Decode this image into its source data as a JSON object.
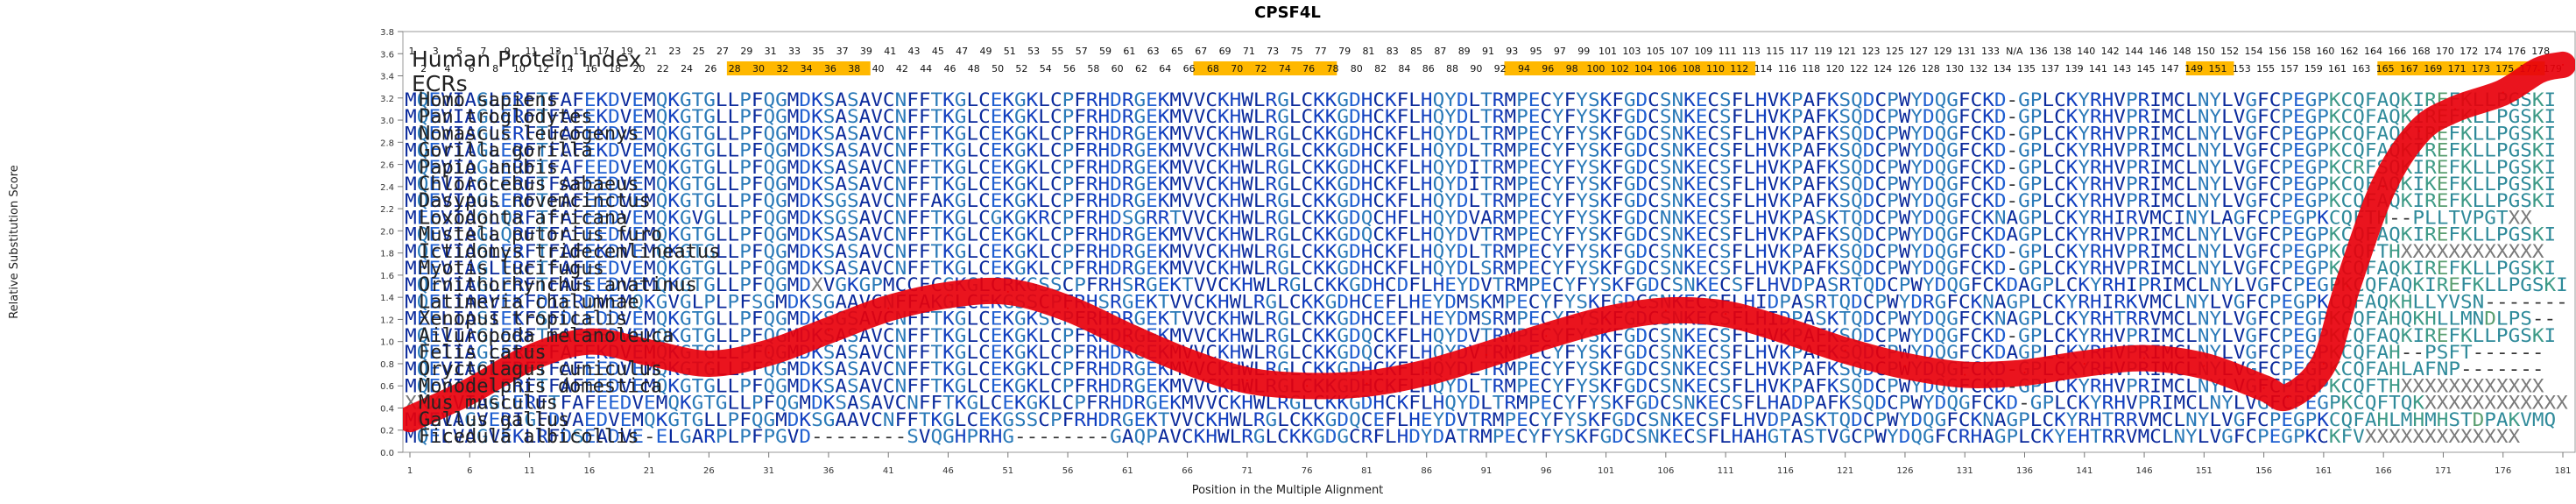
{
  "chart_data": {
    "type": "line",
    "title": "CPSF4L",
    "xlabel": "Position in the Multiple Alignment",
    "ylabel": "Relative Substitution Score",
    "xlim": [
      1,
      181
    ],
    "ylim": [
      0,
      3.8
    ],
    "x_ticks": [
      1,
      6,
      11,
      16,
      21,
      26,
      31,
      36,
      41,
      46,
      51,
      56,
      61,
      66,
      71,
      76,
      81,
      86,
      91,
      96,
      101,
      106,
      111,
      116,
      121,
      126,
      131,
      136,
      141,
      146,
      151,
      156,
      161,
      166,
      171,
      176,
      181
    ],
    "y_ticks": [
      "0.0",
      "0.2",
      "0.4",
      "0.6",
      "0.8",
      "1.0",
      "1.2",
      "1.4",
      "1.6",
      "1.8",
      "2.0",
      "2.2",
      "2.4",
      "2.6",
      "2.8",
      "3.0",
      "3.2",
      "3.4",
      "3.6",
      "3.8"
    ],
    "series": [
      {
        "name": "Relative Substitution Score",
        "color": "#e8000b",
        "points": [
          [
            1,
            0.3
          ],
          [
            6,
            0.55
          ],
          [
            11,
            0.85
          ],
          [
            16,
            1.0
          ],
          [
            21,
            0.9
          ],
          [
            26,
            0.8
          ],
          [
            31,
            0.9
          ],
          [
            36,
            1.1
          ],
          [
            41,
            1.3
          ],
          [
            46,
            1.42
          ],
          [
            51,
            1.45
          ],
          [
            56,
            1.3
          ],
          [
            61,
            1.05
          ],
          [
            66,
            0.82
          ],
          [
            71,
            0.65
          ],
          [
            76,
            0.6
          ],
          [
            81,
            0.62
          ],
          [
            86,
            0.72
          ],
          [
            91,
            0.88
          ],
          [
            96,
            1.05
          ],
          [
            101,
            1.2
          ],
          [
            106,
            1.28
          ],
          [
            111,
            1.25
          ],
          [
            116,
            1.1
          ],
          [
            121,
            0.92
          ],
          [
            126,
            0.78
          ],
          [
            131,
            0.7
          ],
          [
            136,
            0.72
          ],
          [
            141,
            0.8
          ],
          [
            146,
            0.85
          ],
          [
            151,
            0.78
          ],
          [
            156,
            0.58
          ],
          [
            158,
            0.5
          ],
          [
            161,
            0.8
          ],
          [
            163,
            1.5
          ],
          [
            166,
            2.4
          ],
          [
            169,
            2.9
          ],
          [
            172,
            3.1
          ],
          [
            176,
            3.25
          ],
          [
            179,
            3.45
          ],
          [
            181,
            3.5
          ]
        ]
      }
    ]
  },
  "header": {
    "human_protein_index_label": "Human Protein Index",
    "ecrs_label": "ECRs",
    "index_row_1": [
      "1",
      "3",
      "5",
      "7",
      "9",
      "11",
      "13",
      "15",
      "17",
      "19",
      "21",
      "23",
      "25",
      "27",
      "29",
      "31",
      "33",
      "35",
      "37",
      "39",
      "41",
      "43",
      "45",
      "47",
      "49",
      "51",
      "53",
      "55",
      "57",
      "59",
      "61",
      "63",
      "65",
      "67",
      "69",
      "71",
      "73",
      "75",
      "77",
      "79",
      "81",
      "83",
      "85",
      "87",
      "89",
      "91",
      "93",
      "95",
      "97",
      "99",
      "101",
      "103",
      "105",
      "107",
      "109",
      "111",
      "113",
      "115",
      "117",
      "119",
      "121",
      "123",
      "125",
      "127",
      "129",
      "131",
      "133",
      "N/A",
      "136",
      "138",
      "140",
      "142",
      "144",
      "146",
      "148",
      "150",
      "152",
      "154",
      "156",
      "158",
      "160",
      "162",
      "164",
      "166",
      "168",
      "170",
      "172",
      "174",
      "176",
      "178"
    ],
    "index_row_2": [
      "2",
      "4",
      "6",
      "8",
      "10",
      "12",
      "14",
      "16",
      "18",
      "20",
      "22",
      "24",
      "26",
      "28",
      "30",
      "32",
      "34",
      "36",
      "38",
      "40",
      "42",
      "44",
      "46",
      "48",
      "50",
      "52",
      "54",
      "56",
      "58",
      "60",
      "62",
      "64",
      "66",
      "68",
      "70",
      "72",
      "74",
      "76",
      "78",
      "80",
      "82",
      "84",
      "86",
      "88",
      "90",
      "92",
      "94",
      "96",
      "98",
      "100",
      "102",
      "104",
      "106",
      "108",
      "110",
      "112",
      "114",
      "116",
      "118",
      "120",
      "122",
      "124",
      "126",
      "128",
      "130",
      "132",
      "134",
      "135",
      "137",
      "139",
      "141",
      "143",
      "145",
      "147",
      "149",
      "151",
      "153",
      "155",
      "157",
      "159",
      "161",
      "163",
      "165",
      "167",
      "169",
      "171",
      "173",
      "175",
      "177",
      "179"
    ],
    "ecr_ranges": [
      [
        28,
        39
      ],
      [
        67,
        78
      ],
      [
        93,
        113
      ],
      [
        150,
        153
      ],
      [
        166,
        179
      ]
    ],
    "ecr_color": "#ffb800"
  },
  "alignment": {
    "rows": [
      {
        "species": "Homo sapiens",
        "seq": "MQEVIAGLERFTFAFEKDVEMQKGTGLLPFQGMDKSASAVCNFFTKGLCEKGKLCPFRHDRGEKMVVCKHWLRGLCKKGDHCKFLHQYDLTRMPECYFYSKFGDCSNKECSFLHVKPAFKSQDCPWYDQGFCKD-GPLCKYRHVPRIMCLNYLVGFCPEGPKCQFAQKIREFKLLPGSKI"
      },
      {
        "species": "Pan troglodytes",
        "seq": "MQEVIAGLERFTFAFEKDVEMQKGTGLLPFQGMDKSASAVCNFFTKGLCEKGKLCPFRHDRGEKMVVCKHWLRGLCKKGDHCKFLHQYDLTRMPECYFYSKFGDCSNKECSFLHVKPAFKSQDCPWYDQGFCKD-GPLCKYRHVPRIMCLNYLVGFCPEGPKCQFAQKIREFKLLPGSKI"
      },
      {
        "species": "Nomascus leucogenys",
        "seq": "MQEVIAGLERFTFAFEKDVEMQKGTGLLPFQGMDKSASAVCNFFTKGLCEKGKLCPFRHDRGEKMVVCKHWLRGLCKKGDHCKFLHQYDLTRMPECYFYSKFGDCSNKECSFLHVKPAFKSQDCPWYDQGFCKD-GPLCKYRHVPRIMCLNYLVGFCPEGPKCQFAQKIREFKLLPGSKI"
      },
      {
        "species": "Gorilla gorilla",
        "seq": "MQEVIAGLERFTFAFEKDVEMQKGTGLLPFQGMDKSASAVCNFFTKGLCEKGKLCPFRHDRGEKMVVCKHWLRGLCKKGDHCKFLHQYDLTRMPECYFYSKFGDCSNKECSFLHVKPAFKSQDCPWYDQGFCKD-GPLCKYRHVPRIMCLNYLVGFCPEGPKCQFAQKIREFKLLPGSKI"
      },
      {
        "species": "Papio anubis",
        "seq": "MQEVIAGLERFTFAFEEDVEMQKGTGLLPFQGMDKSASAVCNFFTKGLCEKGKLCPFRHDRGEKMVVCKHWLRGLCKKGDHCKFLHQYDITRMPECYFYSKFGDCSNKECSFLHVKPAFKSQDCPWYDQGFCKD-GPLCKYRHVPRIMCLNYLVGFCPEGPKCRFSQKIREFKLLPGSKI"
      },
      {
        "species": "Chlorocebus sabaeus",
        "seq": "MQEVIAGLERFTFAFEEDVEMQKGTGLLPFQGMDKSASAVCNFFTKGLCEKGKLCPFRHDRGEKMVVCKHWLRGLCKKGDHCKFLHQYDITRMPECYFYSKFGDCSNKECSFLHVKPAFKSQDCPWYDQGFCKD-GPLCKYRHVPRIMCLNYLVGFCPEGPKCQFAQKIKEFKLLPGSKI"
      },
      {
        "species": "Dasypus novemcinctus",
        "seq": "MQEVIAGLERFTFAFEEDVEMQKGTGLLPFQGMDKSGSAVCNFFAKGLCEKGKLCPFRHDRGEKMVVCKHWLRGLCKKGDHCKFLHQYDLTRMPECYFYSKFGDCSNKECSFLHVKPAFKSQDCPWYDQGFCKD-GPLCKYRHVPRIMCLNYLVGFCPEGPKCQFAQKIREFKLLPGSKI"
      },
      {
        "species": "Loxodonta africana",
        "seq": "MEEVIAGLQRFTFAFEEDVEMQKGVGLLPFQGMDKSGSAVCNFFTKGLCGKGKRCPFRHDSGRRTVVCKHWLRGLCKKGDQCHFLHQYDVARMPECYFYSKFGDCNNKECSFLHVKPASKTQDCPWYDQGFCKNAGPLCKYRHIRVMCINYLAGFCPEGPKCQFTH--PLLTVPGTXX"
      },
      {
        "species": "Mustela putorius furo",
        "seq": "MQEVIAGLQRFTFAFEEDVEMQKGTGLLPFQGMDKSASAVCNFFTKGLCEKGKLCPFRHDRGEKMVVCKHWLRGLCKKGDQCKFLHQYDVTRMPECYFYSKFGDCSNKECSFLHVKPAFKSQDCPWYDQGFCKDAGPLCKYRHVPRIMCLNYLVGFCPEGPKCQFAQKIREFKLLPGSKI"
      },
      {
        "species": "Ictidomys tridecemlineatus",
        "seq": "MQEVIAGLERFTFAFEKDVEMQKGTGLLPFQGMDKSASAVCNFFTKGLCEKGKLCPFRHDRGEKMVVCKHWLRGLCKKGDHCKFLHQYDLTRMPECYFYSKFGDCSNKECSFLHVKPAFKSQDCPWYDQGFCKD-GPLCKYRHVPRIMCLNYLVGFCPEGPKCQFTHXXXXXXXXXXXX"
      },
      {
        "species": "Myotis lucifugus",
        "seq": "MEEVIAGLERFTFAFEEDVEMQKGTGLLPFQGMDKSASAVCNFFTKGLCEKGKLCPFRHDRGEKMVVCKHWLRGLCKKGDHCKFLHQYDLSRMPECYFYSKFGDCSNKECSFLHVKPAFKSQDCPWYDQGFCKD-GPLCKYRHVPRIMCLNYLVGFCPEGPKCQFAQKIREFKLLPGSKI"
      },
      {
        "species": "Ornithorhynchus anatinus",
        "seq": "MQEVIAGLERFTFAFEEDVEMQKGTGLLPFQGMDXVGKGPMCCFCGKGLCRKGSSCPFRHSRGEKTVVCKHWLRGLCKKGDHCDFLHEYDVTRMPECYFYSKFGDCSNKECSFLHVDPASRTQDCPWYDQGFCKDAGPLCKYRHIPRIMCLNYLVGFCPEGPKCQFAQKIREFKLLPGSKI"
      },
      {
        "species": "Latimeria chalumnae",
        "seq": "MQELIARVEKFDIERDVEMQKGVGLPLPFSGMDKSGAAVCNFFAKGLCEKGSSCPFRHSRGEKTVVCKHWLRGLCKKGDHCEFLHEYDMSKMPECYFYSKFGDCSNKECSFLHIDPASRTQDCPWYDRGFCKNAGPLCKYRHIRKVMCLNYLVGFCPEGPKCQFAQKHLLYVSN-------"
      },
      {
        "species": "Xenopus tropicalis",
        "seq": "MEELIASIEKFSFDLEDDVEMQKGTGLLPFQGMDKSGSAVCNFFTKGLCEKGKSCPFRHDRGEKTVVCKHWLRGLCKKGDHCEFLHEYDMSRMPECYFYSKFGDCSNKECSFLHIDPASKTQDCPWYDQGFCKNAGPLCKYRHTRRVMCLNYLVGFCPEGPKCQFAHQKHLLMNDLPS--"
      },
      {
        "species": "Ailuropoda melanoleuca",
        "seq": "MQEVIAGLERFTFAFEEDVEMQKGTGLLPFQGMDKSASAVCNFFTKGLCEKGKLCPFRHDRGEKMVVCKHWLRGLCKKGDQCKFLHQYDVTRMPECYFYSKFGDCSNKECSFLHVKPAFKSQDCPWYDQGFCKD-GPLCKYRHVPRIMCLNYLVGFCPEGPKCQFAQKIREFKLLPGSKI"
      },
      {
        "species": "Felis catus",
        "seq": "MQEIIAGLERFTFAFEKDVEMQKGTGLLPFQGMDKSASAVCNFFTKGLCEKGKLCPFRHDRGEKMVVCKHWLRGLCKKGDQCKFLHQYDVTRMPECYFYSKFGDCSNKECSFLHVKPAFKSQDCPWYDQGFCKDAGPLCKYRHVPRIMCLNYLVGFCPEGPKCQFAH--PSFT------"
      },
      {
        "species": "Oryctolagus cuniculus",
        "seq": "MQEVIAGLERFTFAFEEDVEMQKGTGLLPFQGMDKSASAVCNFFTKGLCEKGKLCPFRHDRGEKMVVCKHWLRGLCKKGDHCKFLHQYDLTRMPECYFYSKFGDCSNKECSFLHVKPAFKSQDCPWYDQGFCKD-GPLCKYRHVPRIMCLNYLVGFCPEGPKCQFAHLAFNP-------"
      },
      {
        "species": "Monodelphis domestica",
        "seq": "MQEVIAGLERFTFAFEEDVEMQKGTGLLPFQGMDKSASAVCNFFTKGLCEKGKLCPFRHDRGEKMVVCKHWLRGLCKKGDHCKFLHQYDLTRMPECYFYSKFGDCSNKECSFLHVKPAFKSQDCPWYDQGFCKD-GPLCKYRHVPRIMCLNYLVGFCPEGPKCQFTHXXXXXXXXXXXX"
      },
      {
        "species": "Mus musculus",
        "seq": "XXXXVIAGLERFTFAFEEDVEMQKGTGLLPFQGMDKSASAVCNFFTKGLCEKGKLCPFRHDRGEKMVVCKHWLRGLCKKGDHCKFLHQYDLTRMPECYFYSKFGDCSNKECSFLHADPAFKSQDCPWYDQGFCKD-GPLCKYRHVPRIMCLNYLVGFCPEGPKCQFTQKXXXXXXXXXXXX"
      },
      {
        "species": "Gallus gallus",
        "seq": "MQEVAGVERIGFDVAEDVEMQKGTGLLPFQGMDKSGAAVCNFFTKGLCEKGSSCPFRHDRGEKTVVCKHWLRGLCKKGDQCEFLHEYDVTRMPECYFYSKFGDCSNKECSFLHVDPASKTQDCPWYDQGFCKNAGPLCKYRHTRRVMCLNYLVGFCPEGPKCQFAHLMHMHSTDPAKVMQ"
      },
      {
        "species": "Ficedula albicollis",
        "seq": "MQELVAGVEKLRFDSEADVE-ELGARPLPFPGVD--------SVQGHPRHG--------GAQPAVCKHWLRGLCKKGDGCRFLHDYDATRMPECYFYSKFGDCSNKECSFLHAHGTASTVGCPWYDQGFCRHAGPLCKYEHTRRVMCLNYLVGFCPEGPKCKFVXXXXXXXXXXXXX"
      }
    ]
  }
}
